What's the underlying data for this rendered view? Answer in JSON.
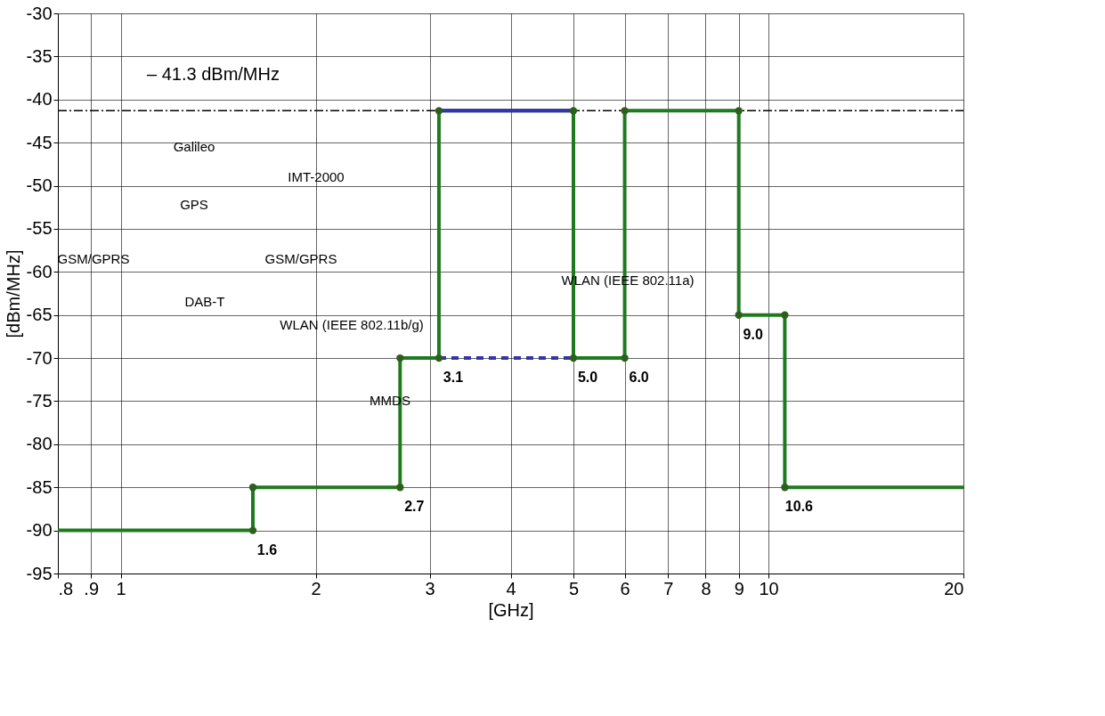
{
  "chart_data": {
    "type": "line",
    "xlabel": "[GHz]",
    "ylabel": "[dBm/MHz]",
    "log": "x",
    "xlim": [
      0.8,
      20
    ],
    "ylim": [
      -95,
      -30
    ],
    "xticks": [
      {
        "value": 0.8,
        "label": ".8"
      },
      {
        "value": 0.9,
        "label": ".9"
      },
      1,
      2,
      3,
      4,
      5,
      6,
      7,
      8,
      9,
      10,
      20
    ],
    "yticks": [
      -95,
      -90,
      -85,
      -80,
      -75,
      -70,
      -65,
      -60,
      -55,
      -50,
      -45,
      -40,
      -35,
      -30
    ],
    "grid": true,
    "series": [
      {
        "color": "#1f7a1f",
        "line_style": "solid",
        "marker": "none",
        "x": [
          0.8,
          1.6,
          1.6,
          2.7,
          2.7,
          3.1,
          3.1,
          5.0,
          5.0,
          6.0,
          6.0,
          9.0,
          9.0,
          10.6,
          10.6,
          20
        ],
        "values": [
          -90,
          -90,
          -85,
          -85,
          -70,
          -70,
          -41.3,
          -41.3,
          -70,
          -70,
          -41.3,
          -41.3,
          -65,
          -65,
          -85,
          -85
        ]
      },
      {
        "color": "#3333aa",
        "line_style": "solid",
        "marker": "none",
        "x": [
          3.1,
          5.0
        ],
        "values": [
          -41.3,
          -41.3
        ]
      },
      {
        "color": "#3333aa",
        "line_style": "dashed",
        "marker": "none",
        "x": [
          3.1,
          5.0
        ],
        "values": [
          -70,
          -70
        ]
      },
      {
        "type": "scatter",
        "color": "#2e5e1e",
        "marker": "circle",
        "x": [
          1.6,
          1.6,
          2.7,
          2.7,
          3.1,
          3.1,
          5.0,
          5.0,
          6.0,
          6.0,
          9.0,
          9.0,
          10.6,
          10.6
        ],
        "values": [
          -90,
          -85,
          -85,
          -70,
          -70,
          -41.3,
          -41.3,
          -70,
          -70,
          -41.3,
          -41.3,
          -65,
          -65,
          -85
        ]
      }
    ],
    "ref_lines": [
      {
        "axis": "y",
        "value": -41.3,
        "label": "– 41.3 dBm/MHz",
        "color": "#000000",
        "line_style": "dashed"
      }
    ],
    "annotations": [
      {
        "text": "1.6",
        "x": 1.6,
        "y": -90
      },
      {
        "text": "2.7",
        "x": 2.7,
        "y": -85
      },
      {
        "text": "3.1",
        "x": 3.1,
        "y": -70
      },
      {
        "text": "5.0",
        "x": 5.0,
        "y": -70
      },
      {
        "text": "6.0",
        "x": 6.0,
        "y": -70
      },
      {
        "text": "9.0",
        "x": 9.0,
        "y": -65
      },
      {
        "text": "10.6",
        "x": 10.6,
        "y": -85
      },
      "Galileo",
      "GPS",
      "IMT-2000",
      "GSM/GPRS",
      "GSM/GPRS",
      "DAB-T",
      "WLAN (IEEE 802.11b/g)",
      "MMDS",
      "WLAN (IEEE 802.11a)"
    ]
  }
}
